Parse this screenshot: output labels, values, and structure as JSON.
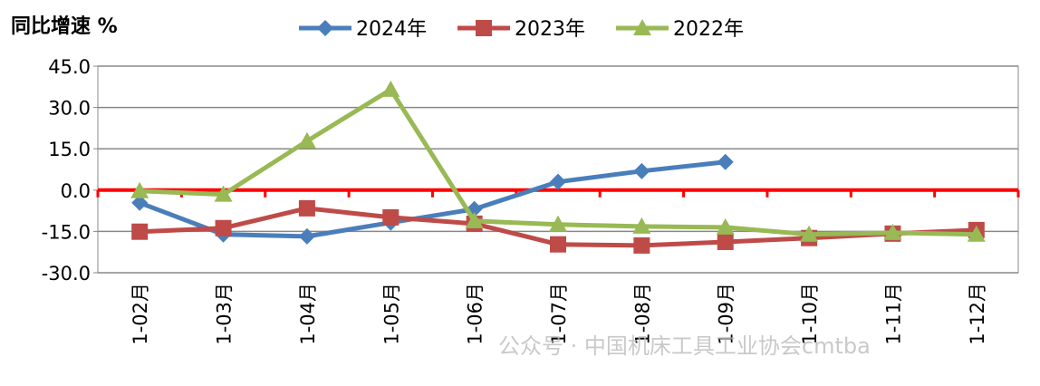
{
  "chart_data": {
    "type": "line",
    "title": "",
    "ylabel": "同比增速 %",
    "xlabel": "",
    "ylim": [
      -30,
      45
    ],
    "yticks": [
      "45.0",
      "30.0",
      "15.0",
      "0.0",
      "-15.0",
      "-30.0"
    ],
    "ytick_values": [
      45,
      30,
      15,
      0,
      -15,
      -30
    ],
    "grid": true,
    "legend_position": "top",
    "categories": [
      "1-02月",
      "1-03月",
      "1-04月",
      "1-05月",
      "1-06月",
      "1-07月",
      "1-08月",
      "1-09月",
      "1-10月",
      "1-11月",
      "1-12月"
    ],
    "series": [
      {
        "name": "2024年",
        "color": "#4a7ebb",
        "marker": "diamond",
        "values": [
          -4.6,
          -16.1,
          -16.8,
          -11.8,
          -6.9,
          3.0,
          6.9,
          10.2,
          null,
          null,
          null
        ]
      },
      {
        "name": "2023年",
        "color": "#be4b48",
        "marker": "square",
        "values": [
          -15.1,
          -13.8,
          -6.6,
          -9.9,
          -12.2,
          -19.7,
          -20.1,
          -18.8,
          -17.4,
          -15.8,
          -14.5
        ]
      },
      {
        "name": "2022年",
        "color": "#98b954",
        "marker": "triangle",
        "values": [
          -0.3,
          -1.6,
          17.8,
          36.5,
          -11.2,
          -12.5,
          -13.2,
          -13.5,
          -16.1,
          -15.5,
          -16.1
        ]
      }
    ],
    "zero_line_color": "#ff0000"
  },
  "watermark": "公众号 · 中国机床工具工业协会cmtba"
}
